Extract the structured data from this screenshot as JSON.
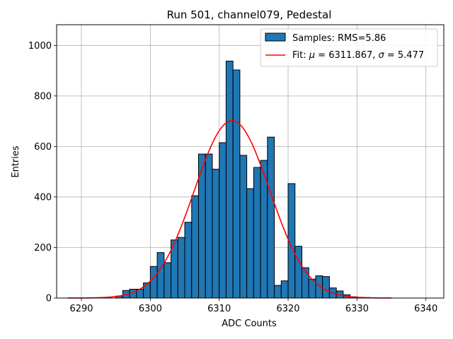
{
  "chart_data": {
    "type": "bar",
    "title": "Run 501, channel079, Pedestal",
    "xlabel": "ADC Counts",
    "ylabel": "Entries",
    "xlim": [
      6286.4,
      6342.6
    ],
    "ylim": [
      0,
      1082
    ],
    "xticks": [
      6290,
      6300,
      6310,
      6320,
      6330,
      6340
    ],
    "yticks": [
      0,
      200,
      400,
      600,
      800,
      1000
    ],
    "grid": true,
    "legend_position": "top-right",
    "series": [
      {
        "name": "Samples: RMS=5.86",
        "kind": "histogram",
        "color": "#1f77b4",
        "edge_color": "#000000",
        "bin_width": 1,
        "bin_edges": [
          6295,
          6296,
          6297,
          6298,
          6299,
          6300,
          6301,
          6302,
          6303,
          6304,
          6305,
          6306,
          6307,
          6308,
          6309,
          6310,
          6311,
          6312,
          6313,
          6314,
          6315,
          6316,
          6317,
          6318,
          6319,
          6320,
          6321,
          6322,
          6323,
          6324,
          6325,
          6326,
          6327,
          6328,
          6329,
          6330,
          6331,
          6332
        ],
        "counts": [
          8,
          30,
          35,
          35,
          60,
          125,
          180,
          140,
          230,
          240,
          300,
          405,
          570,
          570,
          510,
          615,
          938,
          903,
          565,
          433,
          517,
          545,
          637,
          50,
          68,
          453,
          205,
          120,
          75,
          88,
          85,
          40,
          28,
          13,
          5,
          3,
          2
        ]
      },
      {
        "name": "Fit: μ = 6311.867, σ = 5.477",
        "kind": "gaussian",
        "color": "#ff0000",
        "mu": 6311.867,
        "sigma": 5.477,
        "amplitude": 702,
        "x_range": [
          6288,
          6335
        ]
      }
    ]
  },
  "legend": {
    "hist_label": "Samples: RMS=5.86",
    "fit_prefix": "Fit: ",
    "fit_mu_symbol": "μ",
    "fit_mu_value": " = 6311.867, ",
    "fit_sigma_symbol": "σ",
    "fit_sigma_value": " = 5.477"
  }
}
